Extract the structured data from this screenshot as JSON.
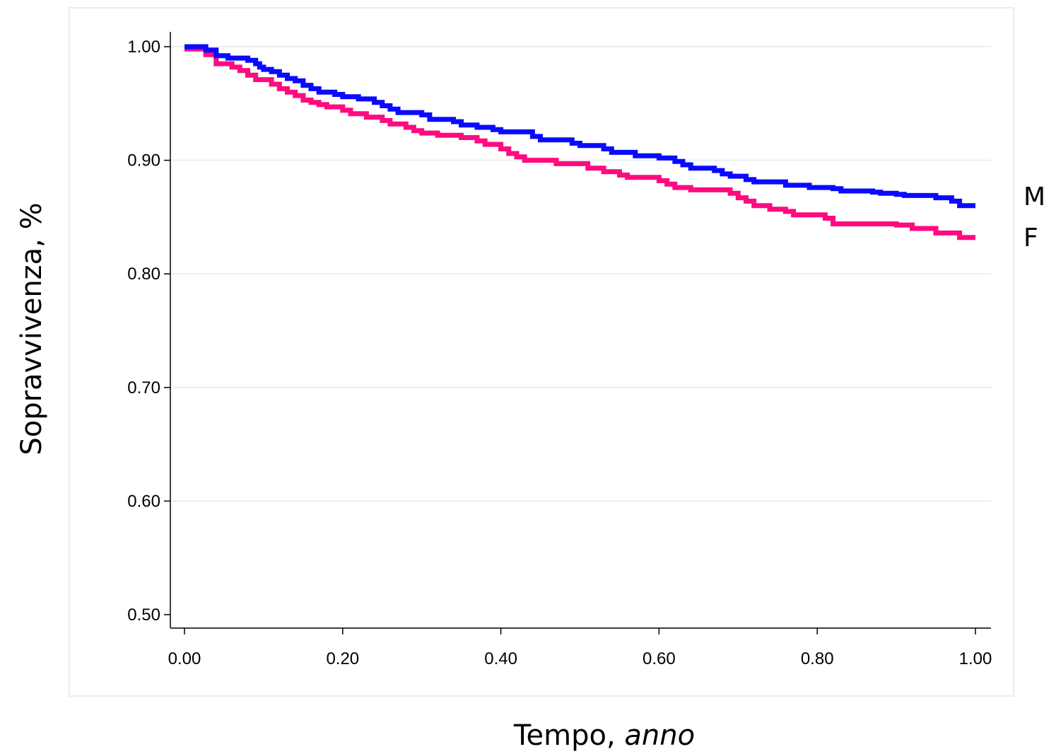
{
  "chart_data": {
    "type": "line",
    "xlabel_main": "Tempo,",
    "xlabel_unit": " anno",
    "ylabel": "Sopravvivenza, %",
    "xlim": [
      0.0,
      1.0
    ],
    "ylim": [
      0.5,
      1.0
    ],
    "x_ticks": [
      "0.00",
      "0.20",
      "0.40",
      "0.60",
      "0.80",
      "1.00"
    ],
    "y_ticks": [
      "0.50",
      "0.60",
      "0.70",
      "0.80",
      "0.90",
      "1.00"
    ],
    "grid": true,
    "series": [
      {
        "name": "M",
        "color": "#0a0aff",
        "points": [
          [
            0.0,
            1.0
          ],
          [
            0.027,
            1.0
          ],
          [
            0.027,
            0.997
          ],
          [
            0.04,
            0.997
          ],
          [
            0.04,
            0.992
          ],
          [
            0.055,
            0.992
          ],
          [
            0.055,
            0.99
          ],
          [
            0.08,
            0.99
          ],
          [
            0.08,
            0.988
          ],
          [
            0.09,
            0.988
          ],
          [
            0.09,
            0.985
          ],
          [
            0.095,
            0.985
          ],
          [
            0.095,
            0.982
          ],
          [
            0.1,
            0.982
          ],
          [
            0.1,
            0.98
          ],
          [
            0.11,
            0.98
          ],
          [
            0.11,
            0.978
          ],
          [
            0.12,
            0.978
          ],
          [
            0.12,
            0.975
          ],
          [
            0.13,
            0.975
          ],
          [
            0.13,
            0.972
          ],
          [
            0.14,
            0.972
          ],
          [
            0.14,
            0.97
          ],
          [
            0.15,
            0.97
          ],
          [
            0.15,
            0.966
          ],
          [
            0.16,
            0.966
          ],
          [
            0.16,
            0.963
          ],
          [
            0.17,
            0.963
          ],
          [
            0.17,
            0.96
          ],
          [
            0.19,
            0.96
          ],
          [
            0.19,
            0.958
          ],
          [
            0.2,
            0.958
          ],
          [
            0.2,
            0.956
          ],
          [
            0.22,
            0.956
          ],
          [
            0.22,
            0.954
          ],
          [
            0.24,
            0.954
          ],
          [
            0.24,
            0.951
          ],
          [
            0.25,
            0.951
          ],
          [
            0.25,
            0.948
          ],
          [
            0.26,
            0.948
          ],
          [
            0.26,
            0.945
          ],
          [
            0.27,
            0.945
          ],
          [
            0.27,
            0.942
          ],
          [
            0.3,
            0.942
          ],
          [
            0.3,
            0.94
          ],
          [
            0.31,
            0.94
          ],
          [
            0.31,
            0.936
          ],
          [
            0.34,
            0.936
          ],
          [
            0.34,
            0.934
          ],
          [
            0.35,
            0.934
          ],
          [
            0.35,
            0.931
          ],
          [
            0.37,
            0.931
          ],
          [
            0.37,
            0.929
          ],
          [
            0.39,
            0.929
          ],
          [
            0.39,
            0.927
          ],
          [
            0.4,
            0.927
          ],
          [
            0.4,
            0.925
          ],
          [
            0.44,
            0.925
          ],
          [
            0.44,
            0.921
          ],
          [
            0.45,
            0.921
          ],
          [
            0.45,
            0.918
          ],
          [
            0.49,
            0.918
          ],
          [
            0.49,
            0.915
          ],
          [
            0.5,
            0.915
          ],
          [
            0.5,
            0.913
          ],
          [
            0.53,
            0.913
          ],
          [
            0.53,
            0.91
          ],
          [
            0.54,
            0.91
          ],
          [
            0.54,
            0.907
          ],
          [
            0.57,
            0.907
          ],
          [
            0.57,
            0.904
          ],
          [
            0.6,
            0.904
          ],
          [
            0.6,
            0.902
          ],
          [
            0.62,
            0.902
          ],
          [
            0.62,
            0.899
          ],
          [
            0.63,
            0.899
          ],
          [
            0.63,
            0.896
          ],
          [
            0.64,
            0.896
          ],
          [
            0.64,
            0.893
          ],
          [
            0.67,
            0.893
          ],
          [
            0.67,
            0.891
          ],
          [
            0.68,
            0.891
          ],
          [
            0.68,
            0.888
          ],
          [
            0.69,
            0.888
          ],
          [
            0.69,
            0.886
          ],
          [
            0.71,
            0.886
          ],
          [
            0.71,
            0.883
          ],
          [
            0.72,
            0.883
          ],
          [
            0.72,
            0.881
          ],
          [
            0.76,
            0.881
          ],
          [
            0.76,
            0.878
          ],
          [
            0.79,
            0.878
          ],
          [
            0.79,
            0.876
          ],
          [
            0.82,
            0.876
          ],
          [
            0.82,
            0.875
          ],
          [
            0.83,
            0.875
          ],
          [
            0.83,
            0.873
          ],
          [
            0.87,
            0.873
          ],
          [
            0.87,
            0.872
          ],
          [
            0.88,
            0.872
          ],
          [
            0.88,
            0.871
          ],
          [
            0.9,
            0.871
          ],
          [
            0.9,
            0.87
          ],
          [
            0.91,
            0.87
          ],
          [
            0.91,
            0.869
          ],
          [
            0.95,
            0.869
          ],
          [
            0.95,
            0.867
          ],
          [
            0.97,
            0.867
          ],
          [
            0.97,
            0.864
          ],
          [
            0.98,
            0.864
          ],
          [
            0.98,
            0.86
          ],
          [
            1.0,
            0.86
          ]
        ]
      },
      {
        "name": "F",
        "color": "#ff0a7f",
        "points": [
          [
            0.0,
            0.998
          ],
          [
            0.027,
            0.998
          ],
          [
            0.027,
            0.993
          ],
          [
            0.04,
            0.993
          ],
          [
            0.04,
            0.985
          ],
          [
            0.06,
            0.985
          ],
          [
            0.06,
            0.982
          ],
          [
            0.07,
            0.982
          ],
          [
            0.07,
            0.979
          ],
          [
            0.08,
            0.979
          ],
          [
            0.08,
            0.975
          ],
          [
            0.09,
            0.975
          ],
          [
            0.09,
            0.971
          ],
          [
            0.11,
            0.971
          ],
          [
            0.11,
            0.967
          ],
          [
            0.12,
            0.967
          ],
          [
            0.12,
            0.963
          ],
          [
            0.13,
            0.963
          ],
          [
            0.13,
            0.96
          ],
          [
            0.14,
            0.96
          ],
          [
            0.14,
            0.957
          ],
          [
            0.15,
            0.957
          ],
          [
            0.15,
            0.953
          ],
          [
            0.16,
            0.953
          ],
          [
            0.16,
            0.951
          ],
          [
            0.17,
            0.951
          ],
          [
            0.17,
            0.949
          ],
          [
            0.18,
            0.949
          ],
          [
            0.18,
            0.947
          ],
          [
            0.2,
            0.947
          ],
          [
            0.2,
            0.944
          ],
          [
            0.21,
            0.944
          ],
          [
            0.21,
            0.941
          ],
          [
            0.23,
            0.941
          ],
          [
            0.23,
            0.938
          ],
          [
            0.25,
            0.938
          ],
          [
            0.25,
            0.935
          ],
          [
            0.26,
            0.935
          ],
          [
            0.26,
            0.932
          ],
          [
            0.28,
            0.932
          ],
          [
            0.28,
            0.929
          ],
          [
            0.29,
            0.929
          ],
          [
            0.29,
            0.926
          ],
          [
            0.3,
            0.926
          ],
          [
            0.3,
            0.924
          ],
          [
            0.32,
            0.924
          ],
          [
            0.32,
            0.922
          ],
          [
            0.35,
            0.922
          ],
          [
            0.35,
            0.92
          ],
          [
            0.37,
            0.92
          ],
          [
            0.37,
            0.917
          ],
          [
            0.38,
            0.917
          ],
          [
            0.38,
            0.914
          ],
          [
            0.4,
            0.914
          ],
          [
            0.4,
            0.91
          ],
          [
            0.41,
            0.91
          ],
          [
            0.41,
            0.906
          ],
          [
            0.42,
            0.906
          ],
          [
            0.42,
            0.903
          ],
          [
            0.43,
            0.903
          ],
          [
            0.43,
            0.9
          ],
          [
            0.47,
            0.9
          ],
          [
            0.47,
            0.897
          ],
          [
            0.51,
            0.897
          ],
          [
            0.51,
            0.893
          ],
          [
            0.53,
            0.893
          ],
          [
            0.53,
            0.89
          ],
          [
            0.55,
            0.89
          ],
          [
            0.55,
            0.887
          ],
          [
            0.56,
            0.887
          ],
          [
            0.56,
            0.885
          ],
          [
            0.6,
            0.885
          ],
          [
            0.6,
            0.882
          ],
          [
            0.61,
            0.882
          ],
          [
            0.61,
            0.879
          ],
          [
            0.62,
            0.879
          ],
          [
            0.62,
            0.876
          ],
          [
            0.64,
            0.876
          ],
          [
            0.64,
            0.874
          ],
          [
            0.69,
            0.874
          ],
          [
            0.69,
            0.871
          ],
          [
            0.7,
            0.871
          ],
          [
            0.7,
            0.867
          ],
          [
            0.71,
            0.867
          ],
          [
            0.71,
            0.864
          ],
          [
            0.72,
            0.864
          ],
          [
            0.72,
            0.86
          ],
          [
            0.74,
            0.86
          ],
          [
            0.74,
            0.857
          ],
          [
            0.76,
            0.857
          ],
          [
            0.76,
            0.855
          ],
          [
            0.77,
            0.855
          ],
          [
            0.77,
            0.852
          ],
          [
            0.81,
            0.852
          ],
          [
            0.81,
            0.849
          ],
          [
            0.82,
            0.849
          ],
          [
            0.82,
            0.844
          ],
          [
            0.9,
            0.844
          ],
          [
            0.9,
            0.843
          ],
          [
            0.92,
            0.843
          ],
          [
            0.92,
            0.84
          ],
          [
            0.95,
            0.84
          ],
          [
            0.95,
            0.836
          ],
          [
            0.98,
            0.836
          ],
          [
            0.98,
            0.832
          ],
          [
            1.0,
            0.832
          ]
        ]
      }
    ],
    "end_labels": [
      "M",
      "F"
    ]
  }
}
